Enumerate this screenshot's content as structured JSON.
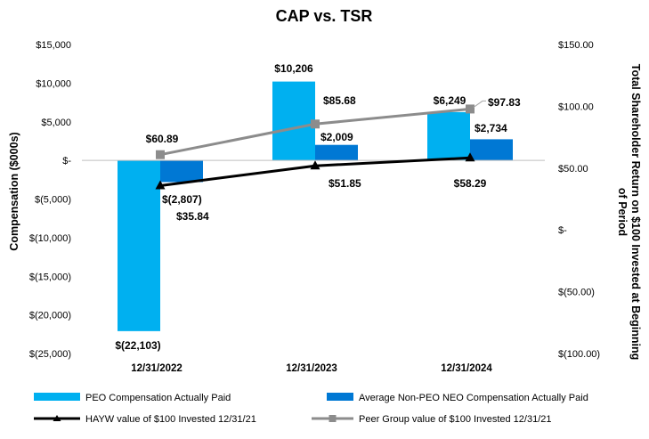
{
  "chart_data": {
    "type": "bar",
    "title": "CAP vs. TSR",
    "categories": [
      "12/31/2022",
      "12/31/2023",
      "12/31/2024"
    ],
    "ylabel": "Compensation ($000s)",
    "y2label_lines": [
      "Total Shareholder Return on $100 Invested at Beginning",
      "of Period"
    ],
    "ylim": [
      -25000,
      15000
    ],
    "y_ticks": [
      15000,
      10000,
      5000,
      0,
      -5000,
      -10000,
      -15000,
      -20000,
      -25000
    ],
    "y_tick_labels": [
      "$15,000",
      "$10,000",
      "$5,000",
      "$-",
      "$(5,000)",
      "$(10,000)",
      "$(15,000)",
      "$(20,000)",
      "$(25,000)"
    ],
    "y2lim": [
      -100,
      150
    ],
    "y2_ticks": [
      150,
      100,
      50,
      0,
      -50,
      -100
    ],
    "y2_tick_labels": [
      "$150.00",
      "$100.00",
      "$50.00",
      "$-",
      "$(50.00)",
      "$(100.00)"
    ],
    "bar_series": [
      {
        "name": "PEO Compensation Actually Paid",
        "color": "#00B0F0",
        "values": [
          -22103,
          10206,
          6249
        ],
        "labels": [
          "$(22,103)",
          "$10,206",
          "$6,249"
        ]
      },
      {
        "name": "Average Non-PEO NEO Compensation Actually Paid",
        "color": "#0078D4",
        "values": [
          -2807,
          2009,
          2734
        ],
        "labels": [
          "$(2,807)",
          "$2,009",
          "$2,734"
        ]
      }
    ],
    "line_series": [
      {
        "name": "HAYW value of $100 Invested 12/31/21",
        "color": "#000000",
        "marker": "triangle",
        "values": [
          35.84,
          51.85,
          58.29
        ],
        "labels": [
          "$35.84",
          "$51.85",
          "$58.29"
        ]
      },
      {
        "name": "Peer Group value of $100 Invested 12/31/21",
        "color": "#8C8C8C",
        "marker": "square",
        "values": [
          60.89,
          85.68,
          97.83
        ],
        "labels": [
          "$60.89",
          "$85.68",
          "$97.83"
        ]
      }
    ],
    "legend_position": "bottom"
  }
}
